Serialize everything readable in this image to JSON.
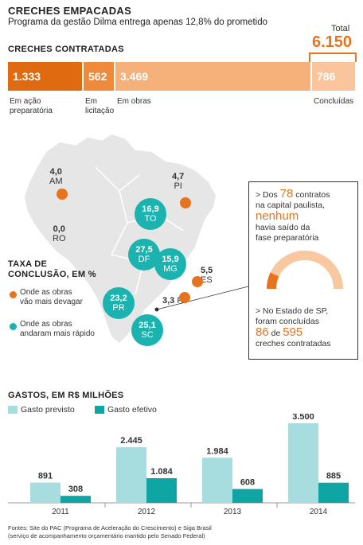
{
  "header": {
    "title": "CRECHES EMPACADAS",
    "subtitle": "Programa da gestão Dilma entrega apenas 12,8% do prometido"
  },
  "contracted": {
    "title": "CRECHES CONTRATADAS",
    "total_label": "Total",
    "total_value": "6.150",
    "segments": [
      {
        "value": 1333,
        "label_value": "1.333",
        "caption_l1": "Em ação",
        "caption_l2": "preparatória",
        "color": "#e06a10"
      },
      {
        "value": 562,
        "label_value": "562",
        "caption_l1": "Em",
        "caption_l2": "licitação",
        "color": "#ee8a3a"
      },
      {
        "value": 3469,
        "label_value": "3.469",
        "caption_l1": "Em obras",
        "caption_l2": "",
        "color": "#f6b07a"
      },
      {
        "value": 786,
        "label_value": "786",
        "caption_l1": "Concluídas",
        "caption_l2": "",
        "color": "#fac49c"
      }
    ]
  },
  "map": {
    "title_l1": "TAXA DE",
    "title_l2": "CONCLUSÃO, EM %",
    "legend": [
      {
        "l1": "Onde as obras",
        "l2": "vão mais devagar",
        "color": "#e8731e"
      },
      {
        "l1": "Onde as obras",
        "l2": "andaram mais rápido",
        "color": "#1ab3b0"
      }
    ],
    "states": [
      {
        "state": "AM",
        "value": "4,0",
        "type": "slow"
      },
      {
        "state": "RO",
        "value": "0,0",
        "type": "slow"
      },
      {
        "state": "PI",
        "value": "4,7",
        "type": "slow"
      },
      {
        "state": "TO",
        "value": "16,9",
        "type": "fast"
      },
      {
        "state": "DF",
        "value": "27,5",
        "type": "fast"
      },
      {
        "state": "MG",
        "value": "15,9",
        "type": "fast"
      },
      {
        "state": "ES",
        "value": "5,5",
        "type": "slow"
      },
      {
        "state": "RJ",
        "value": "3,3",
        "type": "slow"
      },
      {
        "state": "PR",
        "value": "23,2",
        "type": "fast"
      },
      {
        "state": "SC",
        "value": "25,1",
        "type": "fast"
      }
    ]
  },
  "panel": {
    "p1_a": "> Dos",
    "p1_num": "78",
    "p1_b": "contratos",
    "p1_c": "na capital paulista,",
    "p1_hl": "nenhum",
    "p1_d": "havia saído da",
    "p1_e": "fase preparatória",
    "p2_a": "> No Estado de SP,",
    "p2_b": "foram concluídas",
    "p2_num1": "86",
    "p2_de": "de",
    "p2_num2": "595",
    "p2_c": "creches contratadas"
  },
  "chart_data": {
    "type": "bar",
    "title": "GASTOS, EM R$ MILHÕES",
    "categories": [
      "2011",
      "2012",
      "2013",
      "2014"
    ],
    "series": [
      {
        "name": "Gasto previsto",
        "values": [
          891,
          2445,
          1984,
          3500
        ],
        "labels": [
          "891",
          "2.445",
          "1.984",
          "3.500"
        ],
        "color": "#a8dde0"
      },
      {
        "name": "Gasto efetivo",
        "values": [
          308,
          1084,
          608,
          885
        ],
        "labels": [
          "308",
          "1.084",
          "608",
          "885"
        ],
        "color": "#10a5a5"
      }
    ],
    "ylim": [
      0,
      3500
    ]
  },
  "footer": {
    "l1": "Fontes: Site do PAC (Programa de Aceleração do Crescimento) e Siga Brasil",
    "l2": "(serviço de acompanhamento orçamentário mantido pelo Senado Federal)"
  }
}
